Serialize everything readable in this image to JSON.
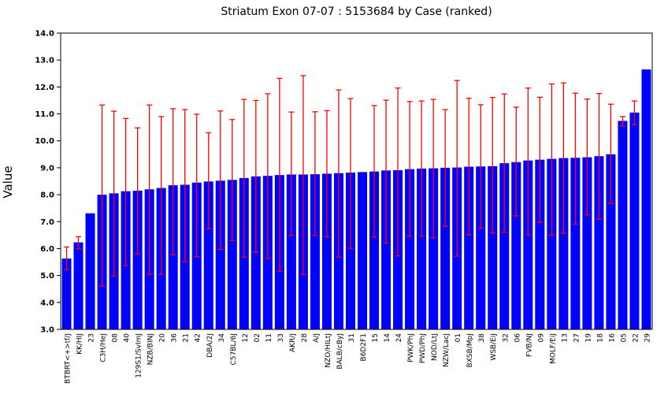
{
  "chart_data": {
    "type": "bar",
    "title": "Striatum Exon 07-07 : 5153684 by Case (ranked)",
    "ylabel": "Value",
    "xlabel": "",
    "ylim": [
      3.0,
      14.0
    ],
    "ytick_step": 1.0,
    "ytick_decimals": 1,
    "grid": false,
    "legend_position": "none",
    "bar_color": "#0000ff",
    "error_bar_color": "#ff0000",
    "axis_color": "#000000",
    "background_color": "#ffffff",
    "categories": [
      "BTBRT<+>tf/J",
      "KK/HIJ",
      "23",
      "C3H/HeJ",
      "08",
      "40",
      "129S1/SvImJ",
      "NZB/BINJ",
      "20",
      "36",
      "21",
      "42",
      "DBA/2J",
      "34",
      "C57BL/6J",
      "12",
      "02",
      "11",
      "33",
      "AKR/J",
      "28",
      "A/J",
      "NZO/HILtJ",
      "BALB/cByJ",
      "31",
      "B6D2F1",
      "15",
      "14",
      "24",
      "PWK/PhJ",
      "PWD/PhJ",
      "NOD/LtJ",
      "NZW/LacJ",
      "01",
      "BXSB/MpJ",
      "38",
      "WSB/EiJ",
      "32",
      "06",
      "FVB/NJ",
      "09",
      "MOLF/EiJ",
      "13",
      "27",
      "19",
      "18",
      "16",
      "05",
      "22",
      "29"
    ],
    "values": [
      5.63,
      6.23,
      7.31,
      8.0,
      8.05,
      8.13,
      8.15,
      8.2,
      8.25,
      8.35,
      8.37,
      8.45,
      8.49,
      8.52,
      8.55,
      8.62,
      8.68,
      8.7,
      8.73,
      8.75,
      8.75,
      8.76,
      8.78,
      8.8,
      8.82,
      8.84,
      8.86,
      8.9,
      8.91,
      8.95,
      8.97,
      8.98,
      9.0,
      9.01,
      9.04,
      9.05,
      9.06,
      9.17,
      9.21,
      9.27,
      9.3,
      9.33,
      9.36,
      9.37,
      9.39,
      9.43,
      9.5,
      10.74,
      11.05,
      12.65
    ],
    "error_low": [
      5.22,
      5.99,
      null,
      4.61,
      4.98,
      5.37,
      5.8,
      5.05,
      5.04,
      5.77,
      5.52,
      5.7,
      6.74,
      5.97,
      6.3,
      5.68,
      5.87,
      5.63,
      5.16,
      6.49,
      5.04,
      6.49,
      6.44,
      5.68,
      6.01,
      null,
      6.42,
      6.21,
      5.73,
      6.46,
      6.46,
      6.4,
      6.83,
      5.72,
      6.52,
      6.75,
      6.58,
      6.61,
      7.21,
      6.51,
      6.97,
      6.49,
      6.57,
      6.91,
      7.25,
      7.09,
      7.68,
      10.55,
      10.6,
      null
    ],
    "error_high": [
      6.06,
      6.44,
      null,
      11.33,
      11.1,
      10.83,
      10.48,
      11.33,
      10.9,
      11.19,
      11.16,
      10.99,
      10.3,
      11.11,
      10.79,
      11.54,
      11.5,
      11.75,
      12.32,
      11.07,
      12.42,
      11.08,
      11.12,
      11.89,
      11.57,
      null,
      11.31,
      11.51,
      11.96,
      11.46,
      11.48,
      11.54,
      11.16,
      12.24,
      11.58,
      11.34,
      11.61,
      11.74,
      11.25,
      11.96,
      11.62,
      12.11,
      12.15,
      11.77,
      11.55,
      11.76,
      11.36,
      10.9,
      11.48,
      null
    ]
  }
}
